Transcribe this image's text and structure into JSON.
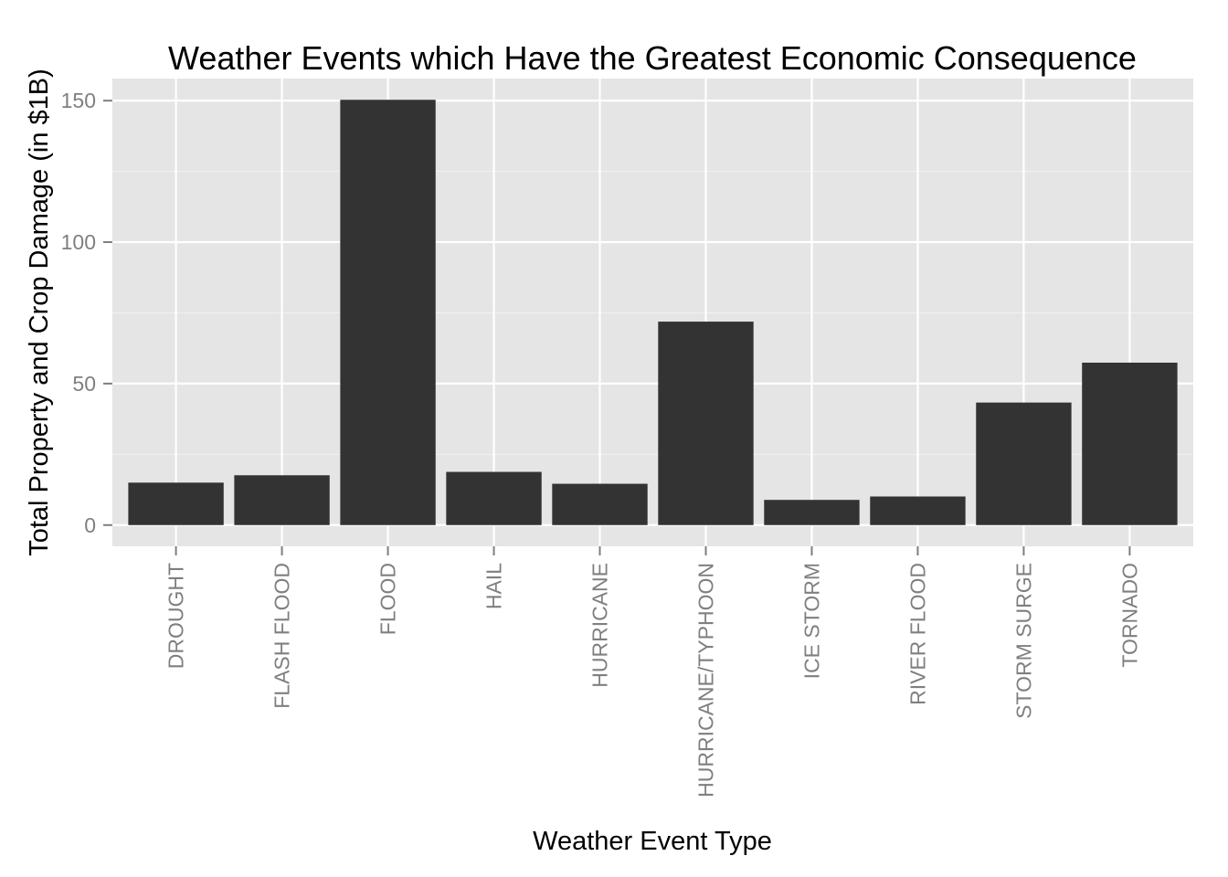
{
  "chart_data": {
    "type": "bar",
    "title": "Weather Events which Have the Greatest Economic Consequence",
    "xlabel": "Weather Event Type",
    "ylabel": "Total Property and Crop Damage (in $1B)",
    "categories": [
      "DROUGHT",
      "FLASH FLOOD",
      "FLOOD",
      "HAIL",
      "HURRICANE",
      "HURRICANE/TYPHOON",
      "ICE STORM",
      "RIVER FLOOD",
      "STORM SURGE",
      "TORNADO"
    ],
    "values": [
      15.0,
      17.6,
      150.3,
      18.8,
      14.6,
      71.9,
      8.9,
      10.1,
      43.3,
      57.4
    ],
    "yticks": [
      0,
      50,
      100,
      150
    ],
    "ytick_labels": [
      "0",
      "50",
      "100",
      "150"
    ],
    "ylim": [
      -7.5,
      157.8
    ],
    "grid": true,
    "colors": {
      "panel_background": "#e5e5e5",
      "grid_major": "#ffffff",
      "grid_minor": "#f2f2f2",
      "bar_fill": "#333333",
      "tick_text": "#7f7f7f",
      "title_text": "#000000"
    }
  }
}
